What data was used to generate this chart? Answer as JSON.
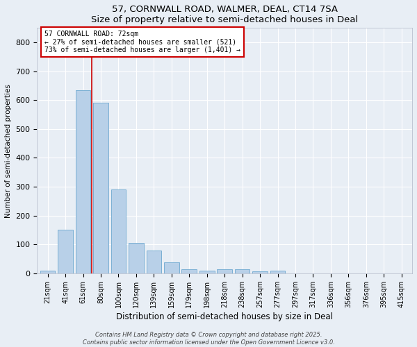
{
  "title": "57, CORNWALL ROAD, WALMER, DEAL, CT14 7SA",
  "subtitle": "Size of property relative to semi-detached houses in Deal",
  "xlabel": "Distribution of semi-detached houses by size in Deal",
  "ylabel": "Number of semi-detached properties",
  "bar_labels": [
    "21sqm",
    "41sqm",
    "61sqm",
    "80sqm",
    "100sqm",
    "120sqm",
    "139sqm",
    "159sqm",
    "179sqm",
    "198sqm",
    "218sqm",
    "238sqm",
    "257sqm",
    "277sqm",
    "297sqm",
    "317sqm",
    "336sqm",
    "356sqm",
    "376sqm",
    "395sqm",
    "415sqm"
  ],
  "bar_values": [
    10,
    150,
    635,
    590,
    290,
    105,
    80,
    38,
    15,
    10,
    15,
    15,
    8,
    10,
    0,
    0,
    0,
    0,
    0,
    0,
    0
  ],
  "bar_color": "#b8d0e8",
  "bar_edge_color": "#7aafd4",
  "vline_color": "#cc0000",
  "annotation_line1": "57 CORNWALL ROAD: 72sqm",
  "annotation_line2": "← 27% of semi-detached houses are smaller (521)",
  "annotation_line3": "73% of semi-detached houses are larger (1,401) →",
  "annotation_box_color": "#ffffff",
  "annotation_box_edge_color": "#cc0000",
  "footer_text": "Contains HM Land Registry data © Crown copyright and database right 2025.\nContains public sector information licensed under the Open Government Licence v3.0.",
  "ylim": [
    0,
    850
  ],
  "background_color": "#e8eef5",
  "grid_color": "#ffffff"
}
